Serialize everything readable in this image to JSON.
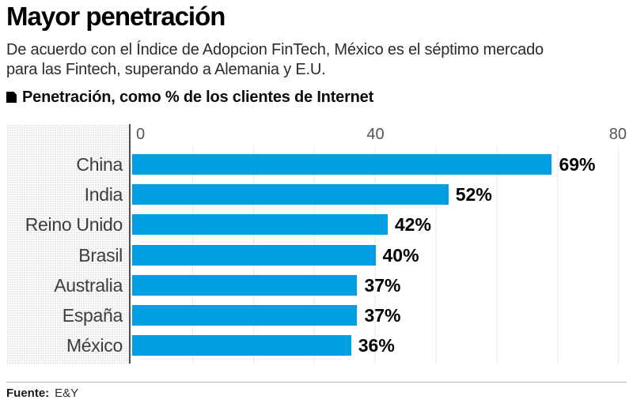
{
  "header": {
    "title": "Mayor penetración",
    "subtitle_line1": "De acuerdo con el Índice de Adopcion FinTech, México es el séptimo mercado",
    "subtitle_line2": "para las Fintech, superando a Alemania y E.U.",
    "chart_label": "Penetración, como % de los clientes de Internet"
  },
  "chart_data": {
    "type": "bar",
    "orientation": "horizontal",
    "title": "Penetración, como % de los clientes de Internet",
    "categories": [
      "China",
      "India",
      "Reino Unido",
      "Brasil",
      "Australia",
      "España",
      "México"
    ],
    "values": [
      69,
      52,
      42,
      40,
      37,
      37,
      36
    ],
    "value_labels": [
      "69%",
      "52%",
      "42%",
      "40%",
      "37%",
      "37%",
      "36%"
    ],
    "x_ticks": [
      "0",
      "40",
      "80"
    ],
    "x_tick_values": [
      0,
      40,
      80
    ],
    "xlim": [
      0,
      80
    ],
    "grid": "vertical-light",
    "legend": false,
    "bar_color": "#009EE2"
  },
  "footer": {
    "source_label": "Fuente:",
    "source_value": "E&Y"
  },
  "colors": {
    "bar": "#009EE2",
    "axis_line": "#4f4f52",
    "panel_bg": "#ededed",
    "gridline": "#e9e9e9",
    "rule": "#b5b5b5",
    "text_dark": "#231f20",
    "text_gray": "#3d3d3f"
  }
}
